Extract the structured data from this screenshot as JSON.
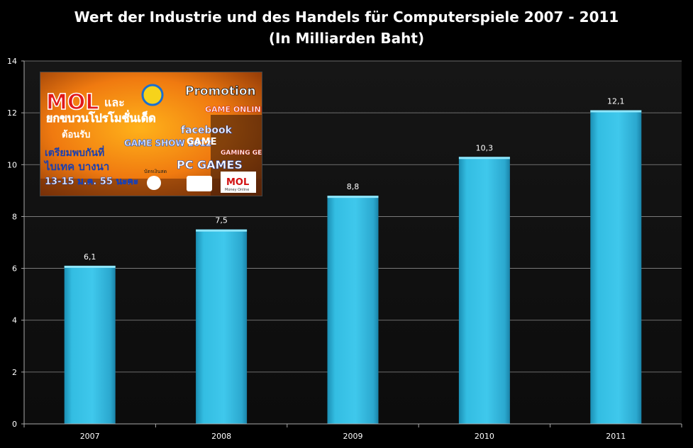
{
  "chart_data": {
    "type": "bar",
    "title": "Wert der Industrie und des Handels für Computerspiele 2007 - 2011",
    "subtitle": "(In Milliarden Baht)",
    "categories": [
      "2007",
      "2008",
      "2009",
      "2010",
      "2011"
    ],
    "values": [
      6.1,
      7.5,
      8.8,
      10.3,
      12.1
    ],
    "value_labels": [
      "6,1",
      "7,5",
      "8,8",
      "10,3",
      "12,1"
    ],
    "y_ticks": [
      "0",
      "2",
      "4",
      "6",
      "8",
      "10",
      "12",
      "14"
    ],
    "ylim": [
      0,
      14
    ],
    "xlabel": "",
    "ylabel": "",
    "grid": true,
    "bar_color": "#3cc4e6"
  },
  "ad": {
    "brand": "MOL",
    "word_and": "และ",
    "headline": "ยกขบวนโปรโมชั่นเด็ด",
    "welcome": "ต้อนรับ",
    "event": "GAME SHOW 2012",
    "promotion": "Promotion",
    "game_online": "GAME ONLINE",
    "facebook": "facebook",
    "game": "GAME",
    "gaming_gears": "GAMING GEARS",
    "pc_games": "PC GAMES",
    "meet_line1": "เตรียมพบกันที่",
    "meet_line2": "ไบเทค บางนา",
    "dates": "13-15 ม.ค. 55 นะคะ",
    "card_label": "บัตรเงินสด",
    "footer_brand": "MOL",
    "footer_sub": "Money Online"
  }
}
